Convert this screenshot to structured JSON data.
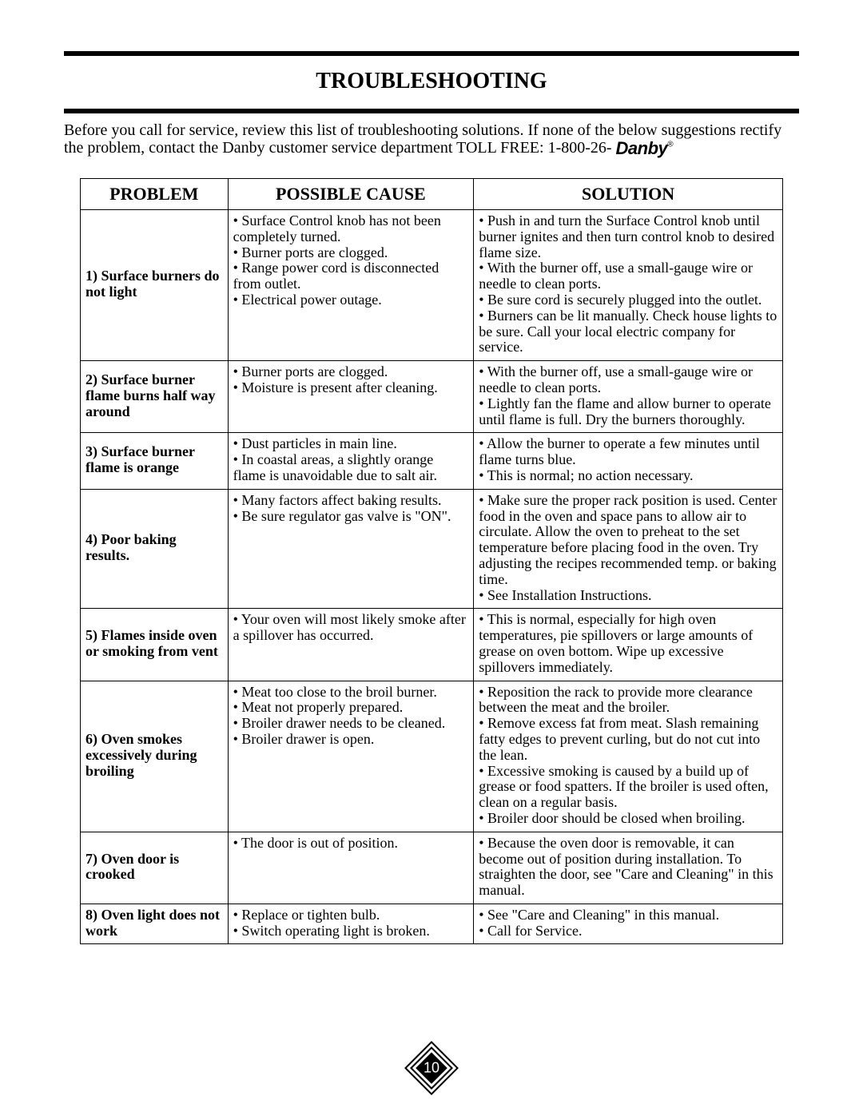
{
  "document": {
    "title": "TROUBLESHOOTING",
    "intro_part1": "Before you call for service, review this list of troubleshooting solutions. If none of the below suggestions rectify the problem, contact the Danby customer service department TOLL FREE: 1-800-26- ",
    "brand": "Danby",
    "brand_reg": "®",
    "page_number": "10"
  },
  "table": {
    "headers": {
      "problem": "PROBLEM",
      "cause": "POSSIBLE CAUSE",
      "solution": "SOLUTION"
    },
    "rows": [
      {
        "problem": "1) Surface burners do not light",
        "cause": "• Surface Control knob has not been completely turned.\n• Burner ports are clogged.\n• Range power cord is disconnected from outlet.\n• Electrical power outage.",
        "solution": "• Push in and turn the Surface Control knob until burner ignites and then turn control knob to desired flame size.\n• With the burner off, use a small-gauge wire or needle to clean ports.\n• Be sure cord is securely plugged into the outlet.\n• Burners can be lit manually. Check house lights to be sure. Call your local electric company for service."
      },
      {
        "problem": "2) Surface burner flame burns half way around",
        "cause": "• Burner ports are clogged.\n• Moisture is present after cleaning.",
        "solution": "• With the burner off, use a small-gauge wire or needle to clean ports.\n• Lightly fan the flame and allow burner to operate until flame is full. Dry the burners thoroughly."
      },
      {
        "problem": "3) Surface burner flame is orange",
        "cause": "• Dust particles in main line.\n• In coastal areas, a slightly orange flame is unavoidable due to salt air.",
        "solution": "• Allow the burner to operate a few minutes until flame turns blue.\n• This is normal; no action necessary."
      },
      {
        "problem": "4) Poor baking results.",
        "cause": "• Many factors affect baking results.\n• Be sure regulator gas valve is \"ON\".",
        "solution": "• Make sure the proper rack position is used. Center food in the oven and space pans to allow air to circulate. Allow the oven to preheat to the set temperature before placing food in the oven. Try adjusting the recipes recommended temp. or baking time.\n• See Installation Instructions."
      },
      {
        "problem": "5) Flames inside oven or smoking from vent",
        "cause": "• Your oven will most likely smoke after a spillover has occurred.",
        "solution": "• This is normal, especially for high oven temperatures, pie spillovers or large amounts of grease on oven bottom. Wipe up excessive spillovers immediately."
      },
      {
        "problem": "6) Oven smokes excessively during broiling",
        "cause": "• Meat too close to the broil burner.\n• Meat not properly prepared.\n• Broiler drawer needs to be cleaned.\n• Broiler drawer is open.",
        "solution": "• Reposition the rack to provide more clearance between the meat and the broiler.\n• Remove excess fat from meat. Slash remaining fatty edges to prevent curling, but do not cut into the lean.\n• Excessive smoking is caused by a build up of grease or food spatters. If the broiler is used often, clean on a regular basis.\n• Broiler door should be closed when broiling."
      },
      {
        "problem": "7) Oven door is crooked",
        "cause": "• The door is out of position.",
        "solution": "• Because the oven door is removable, it can become out of position during installation. To straighten the door, see \"Care and Cleaning\" in this manual."
      },
      {
        "problem": "8) Oven light does not work",
        "cause": "• Replace or tighten bulb.\n• Switch operating light is broken.",
        "solution": "• See \"Care and Cleaning\" in this manual.\n• Call for Service."
      }
    ]
  },
  "style": {
    "background_color": "#ffffff",
    "text_color": "#000000",
    "rule_color": "#000000",
    "font_family": "Times New Roman",
    "title_fontsize": 28,
    "body_fontsize": 20,
    "table_fontsize": 18,
    "border_color": "#000000",
    "columns_pct": [
      21,
      35,
      44
    ]
  }
}
